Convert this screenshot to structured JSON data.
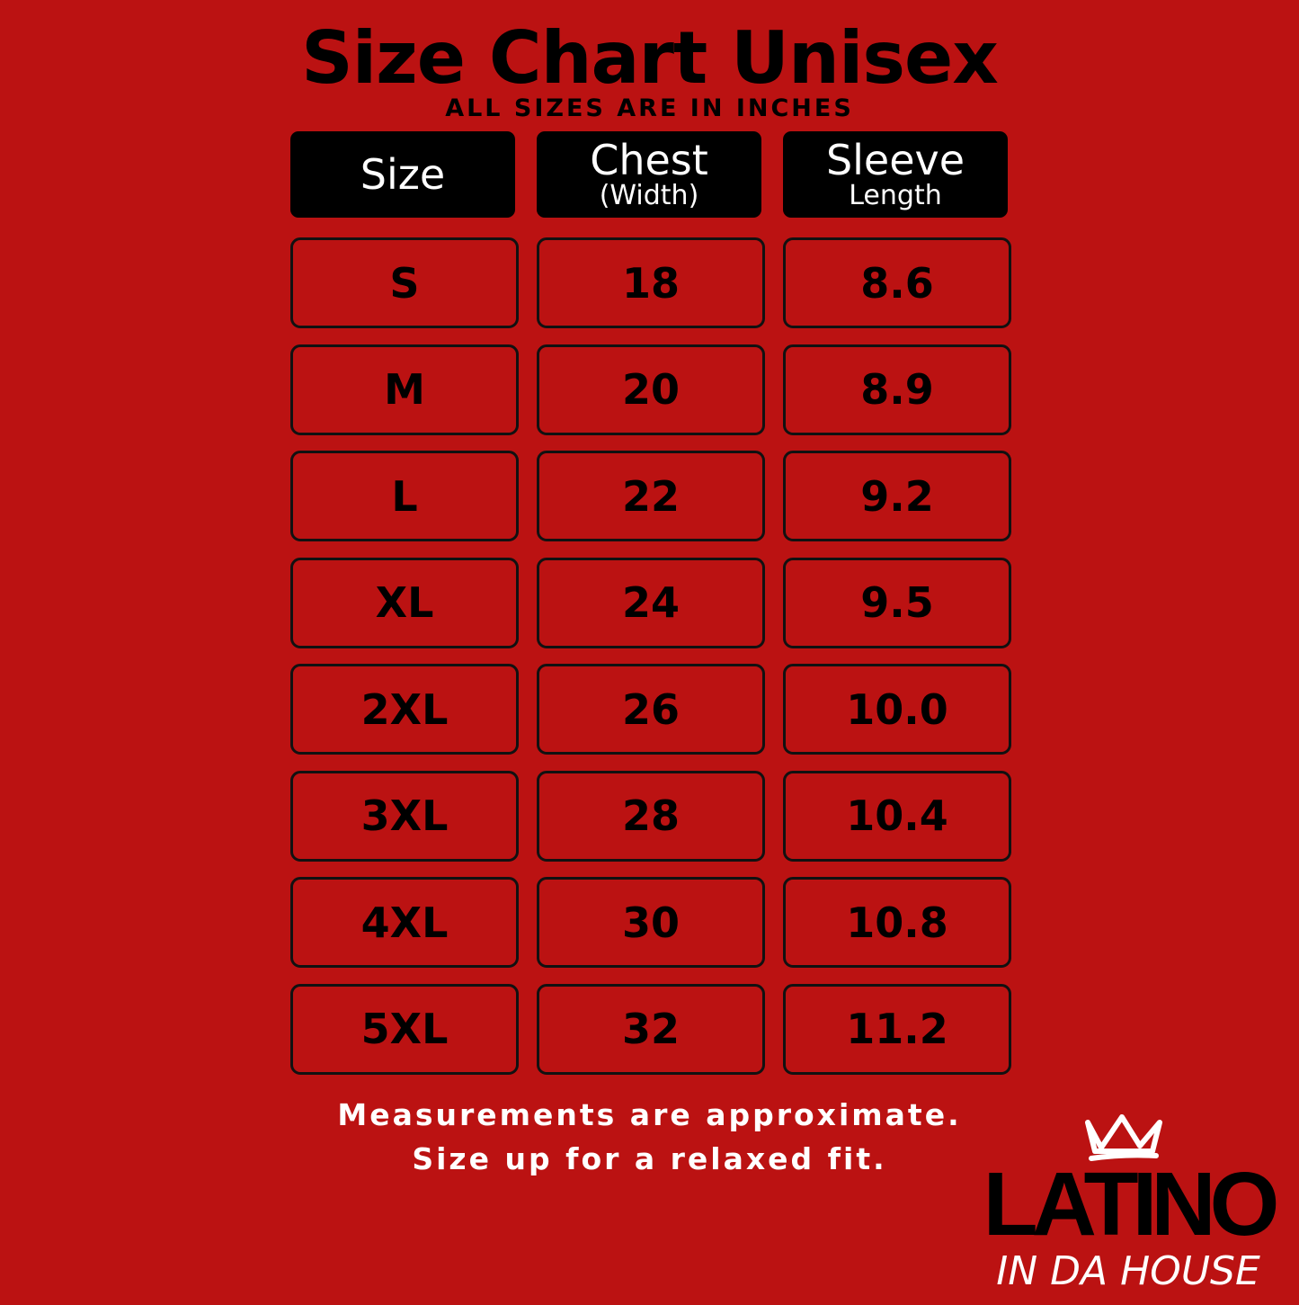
{
  "title": "Size Chart Unisex",
  "subtitle": "ALL SIZES ARE IN INCHES",
  "headers": [
    {
      "main": "Size",
      "sub": ""
    },
    {
      "main": "Chest",
      "sub": "(Width)"
    },
    {
      "main": "Sleeve",
      "sub": "Length"
    }
  ],
  "rows": [
    [
      "S",
      "18",
      "8.6"
    ],
    [
      "M",
      "20",
      "8.9"
    ],
    [
      "L",
      "22",
      "9.2"
    ],
    [
      "XL",
      "24",
      "9.5"
    ],
    [
      "2XL",
      "26",
      "10.0"
    ],
    [
      "3XL",
      "28",
      "10.4"
    ],
    [
      "4XL",
      "30",
      "10.8"
    ],
    [
      "5XL",
      "32",
      "11.2"
    ]
  ],
  "footer": {
    "line1": "Measurements are approximate.",
    "line2": "Size up for a relaxed fit."
  },
  "logo": {
    "top": "LATINO",
    "bottom": "IN DA HOUSE",
    "icon": "crown-icon"
  },
  "colors": {
    "background": "#bb1212",
    "header_bg": "#000000",
    "text": "#000000",
    "footer_text": "#ffffff"
  }
}
